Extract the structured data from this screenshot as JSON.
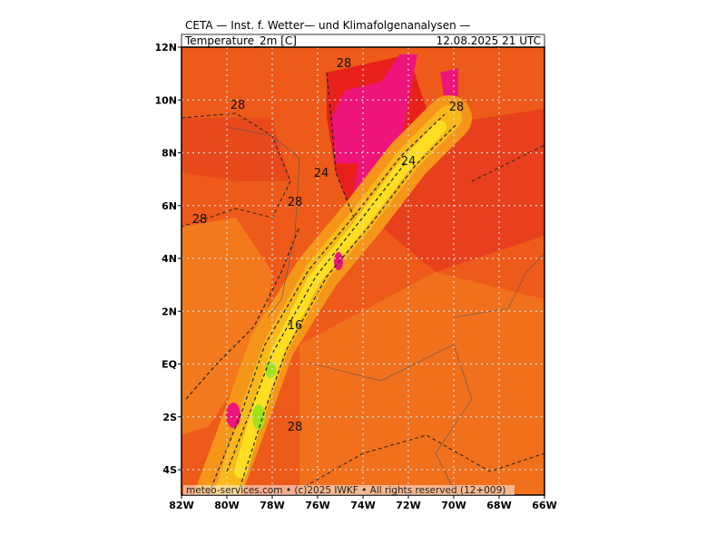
{
  "header": {
    "title": "CETA — Inst. f. Wetter— und Klimafolgenanalysen —",
    "variable": "Temperature_2m [C]",
    "datetime": "12.08.2025 21 UTC"
  },
  "lat_labels": [
    "12N",
    "10N",
    "8N",
    "6N",
    "4N",
    "2N",
    "EQ",
    "2S",
    "4S"
  ],
  "lon_labels": [
    "82W",
    "80W",
    "78W",
    "76W",
    "74W",
    "72W",
    "70W",
    "68W",
    "66W"
  ],
  "contour_labels": [
    "28",
    "28",
    "28",
    "24",
    "24",
    "28",
    "28",
    "16",
    "28"
  ],
  "footer": "meteo-services.com • (c)2025 IWKF • All rights reserved (12+009)"
}
